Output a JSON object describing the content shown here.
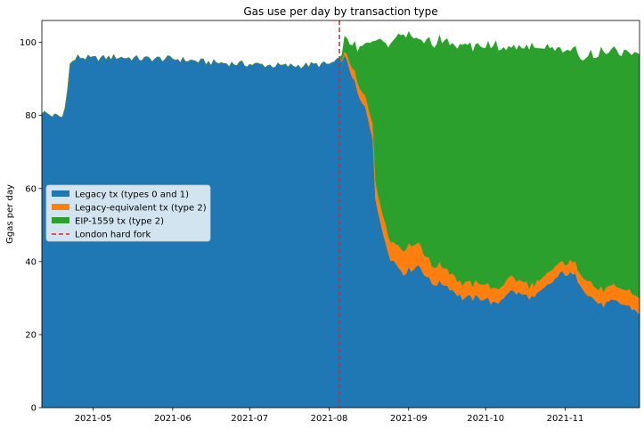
{
  "chart_data": {
    "type": "area",
    "title": "Gas use per day by transaction type",
    "ylabel": "Ggas per day",
    "xlabel": "",
    "xlim": [
      "2021-04-11",
      "2021-11-30"
    ],
    "ylim": [
      0,
      106
    ],
    "yticks": [
      0,
      20,
      40,
      60,
      80,
      100
    ],
    "xticks": [
      {
        "date": "2021-05-01",
        "label": "2021-05"
      },
      {
        "date": "2021-06-01",
        "label": "2021-06"
      },
      {
        "date": "2021-07-01",
        "label": "2021-07"
      },
      {
        "date": "2021-08-01",
        "label": "2021-08"
      },
      {
        "date": "2021-09-01",
        "label": "2021-09"
      },
      {
        "date": "2021-10-01",
        "label": "2021-10"
      },
      {
        "date": "2021-11-01",
        "label": "2021-11"
      }
    ],
    "stacked": true,
    "grid": false,
    "legend_position": "center-left",
    "fork_date": "2021-08-05",
    "series": [
      {
        "name": "Legacy tx (types 0 and 1)",
        "color": "#1f77b4",
        "points": [
          [
            "2021-04-11",
            81
          ],
          [
            "2021-04-15",
            80
          ],
          [
            "2021-04-19",
            79.5
          ],
          [
            "2021-04-20",
            82
          ],
          [
            "2021-04-22",
            94
          ],
          [
            "2021-04-25",
            96
          ],
          [
            "2021-05-01",
            95.5
          ],
          [
            "2021-05-10",
            96
          ],
          [
            "2021-05-20",
            95.5
          ],
          [
            "2021-06-01",
            95.5
          ],
          [
            "2021-06-15",
            94.5
          ],
          [
            "2021-07-01",
            94
          ],
          [
            "2021-07-15",
            93.5
          ],
          [
            "2021-08-01",
            94
          ],
          [
            "2021-08-05",
            95
          ],
          [
            "2021-08-07",
            96
          ],
          [
            "2021-08-10",
            91
          ],
          [
            "2021-08-13",
            84
          ],
          [
            "2021-08-15",
            82
          ],
          [
            "2021-08-18",
            74
          ],
          [
            "2021-08-19",
            58
          ],
          [
            "2021-08-21",
            50
          ],
          [
            "2021-08-25",
            41
          ],
          [
            "2021-08-30",
            37
          ],
          [
            "2021-09-05",
            39
          ],
          [
            "2021-09-10",
            34
          ],
          [
            "2021-09-15",
            34
          ],
          [
            "2021-09-22",
            30
          ],
          [
            "2021-10-01",
            30
          ],
          [
            "2021-10-05",
            28
          ],
          [
            "2021-10-10",
            32
          ],
          [
            "2021-10-20",
            30
          ],
          [
            "2021-10-31",
            37
          ],
          [
            "2021-11-05",
            36
          ],
          [
            "2021-11-10",
            31
          ],
          [
            "2021-11-15",
            28
          ],
          [
            "2021-11-20",
            29
          ],
          [
            "2021-11-25",
            28
          ],
          [
            "2021-11-30",
            26
          ]
        ]
      },
      {
        "name": "Legacy-equivalent tx (type 2)",
        "color": "#ff7f0e",
        "points": [
          [
            "2021-08-05",
            0
          ],
          [
            "2021-08-07",
            1
          ],
          [
            "2021-08-10",
            2.5
          ],
          [
            "2021-08-15",
            3
          ],
          [
            "2021-08-19",
            5
          ],
          [
            "2021-08-25",
            5
          ],
          [
            "2021-09-01",
            7
          ],
          [
            "2021-09-10",
            5
          ],
          [
            "2021-09-20",
            4
          ],
          [
            "2021-10-01",
            4
          ],
          [
            "2021-10-15",
            3.5
          ],
          [
            "2021-11-01",
            3
          ],
          [
            "2021-11-15",
            4
          ],
          [
            "2021-11-30",
            4
          ]
        ]
      },
      {
        "name": "EIP-1559 tx (type 2)",
        "color": "#2ca02c",
        "points": [
          [
            "2021-08-05",
            0
          ],
          [
            "2021-08-07",
            4
          ],
          [
            "2021-08-10",
            6
          ],
          [
            "2021-08-15",
            14
          ],
          [
            "2021-08-18",
            22
          ],
          [
            "2021-08-19",
            38
          ],
          [
            "2021-08-21",
            45
          ],
          [
            "2021-08-25",
            54
          ],
          [
            "2021-08-30",
            59
          ],
          [
            "2021-09-05",
            55
          ],
          [
            "2021-09-10",
            61
          ],
          [
            "2021-09-15",
            62
          ],
          [
            "2021-09-22",
            65
          ],
          [
            "2021-10-01",
            65
          ],
          [
            "2021-10-05",
            67
          ],
          [
            "2021-10-10",
            63
          ],
          [
            "2021-10-20",
            65
          ],
          [
            "2021-10-31",
            58
          ],
          [
            "2021-11-05",
            58
          ],
          [
            "2021-11-10",
            62
          ],
          [
            "2021-11-15",
            65
          ],
          [
            "2021-11-20",
            64
          ],
          [
            "2021-11-25",
            65
          ],
          [
            "2021-11-30",
            66
          ]
        ]
      }
    ],
    "fork_line": {
      "name": "London hard fork",
      "color": "#d62728"
    }
  }
}
